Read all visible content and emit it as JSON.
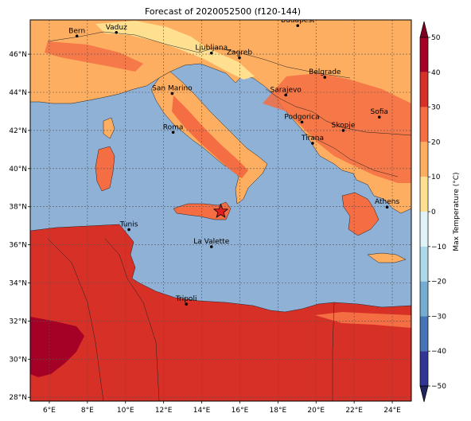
{
  "title": "Forecast of 2020052500 (f120-144)",
  "map": {
    "lon_range": [
      5,
      25
    ],
    "lat_range": [
      27.8,
      47.8
    ],
    "lon_ticks": [
      {
        "value": 6,
        "label": "6°E"
      },
      {
        "value": 8,
        "label": "8°E"
      },
      {
        "value": 10,
        "label": "10°E"
      },
      {
        "value": 12,
        "label": "12°E"
      },
      {
        "value": 14,
        "label": "14°E"
      },
      {
        "value": 16,
        "label": "16°E"
      },
      {
        "value": 18,
        "label": "18°E"
      },
      {
        "value": 20,
        "label": "20°E"
      },
      {
        "value": 22,
        "label": "22°E"
      },
      {
        "value": 24,
        "label": "24°E"
      }
    ],
    "lat_ticks": [
      {
        "value": 28,
        "label": "28°N"
      },
      {
        "value": 30,
        "label": "30°N"
      },
      {
        "value": 32,
        "label": "32°N"
      },
      {
        "value": 34,
        "label": "34°N"
      },
      {
        "value": 36,
        "label": "36°N"
      },
      {
        "value": 38,
        "label": "38°N"
      },
      {
        "value": 40,
        "label": "40°N"
      },
      {
        "value": 42,
        "label": "42°N"
      },
      {
        "value": 44,
        "label": "44°N"
      },
      {
        "value": 46,
        "label": "46°N"
      }
    ],
    "gridlines": true,
    "sea_color": "#8fb1d6",
    "cities": [
      {
        "name": "Bern",
        "lon": 7.45,
        "lat": 46.95
      },
      {
        "name": "Vaduz",
        "lon": 9.52,
        "lat": 47.14
      },
      {
        "name": "Budapest",
        "lon": 19.04,
        "lat": 47.5
      },
      {
        "name": "Ljubljana",
        "lon": 14.51,
        "lat": 46.06
      },
      {
        "name": "Zagreb",
        "lon": 15.98,
        "lat": 45.81
      },
      {
        "name": "Belgrade",
        "lon": 20.46,
        "lat": 44.79
      },
      {
        "name": "San Marino",
        "lon": 12.45,
        "lat": 43.94
      },
      {
        "name": "Sarajevo",
        "lon": 18.41,
        "lat": 43.86
      },
      {
        "name": "Sofia",
        "lon": 23.32,
        "lat": 42.7
      },
      {
        "name": "Podgorica",
        "lon": 19.26,
        "lat": 42.44
      },
      {
        "name": "Skopje",
        "lon": 21.43,
        "lat": 42.0
      },
      {
        "name": "Roma",
        "lon": 12.5,
        "lat": 41.9
      },
      {
        "name": "Tirana",
        "lon": 19.82,
        "lat": 41.33
      },
      {
        "name": "Athens",
        "lon": 23.73,
        "lat": 37.98
      },
      {
        "name": "Tunis",
        "lon": 10.18,
        "lat": 36.8
      },
      {
        "name": "La Valette",
        "lon": 14.51,
        "lat": 35.9
      },
      {
        "name": "Tripoli",
        "lon": 13.19,
        "lat": 32.89
      }
    ],
    "marker": {
      "type": "star",
      "lon": 15.0,
      "lat": 37.75,
      "color": "#e02020"
    }
  },
  "colorbar": {
    "label": "Max Temperature (°C)",
    "ticks": [
      "50",
      "40",
      "30",
      "20",
      "10",
      "0",
      "−10",
      "−20",
      "−30",
      "−40",
      "−50"
    ],
    "levels": [
      {
        "range": [
          40,
          50
        ],
        "color": "#a50026"
      },
      {
        "range": [
          30,
          40
        ],
        "color": "#d73027"
      },
      {
        "range": [
          20,
          30
        ],
        "color": "#f46d43"
      },
      {
        "range": [
          10,
          20
        ],
        "color": "#fdae61"
      },
      {
        "range": [
          0,
          10
        ],
        "color": "#fee090"
      },
      {
        "range": [
          -10,
          0
        ],
        "color": "#e0f3f8"
      },
      {
        "range": [
          -20,
          -10
        ],
        "color": "#abd9e9"
      },
      {
        "range": [
          -30,
          -20
        ],
        "color": "#74add1"
      },
      {
        "range": [
          -40,
          -30
        ],
        "color": "#4575b4"
      },
      {
        "range": [
          -50,
          -40
        ],
        "color": "#313695"
      }
    ],
    "extend_max_color": "#7f0020",
    "extend_min_color": "#20255e"
  }
}
